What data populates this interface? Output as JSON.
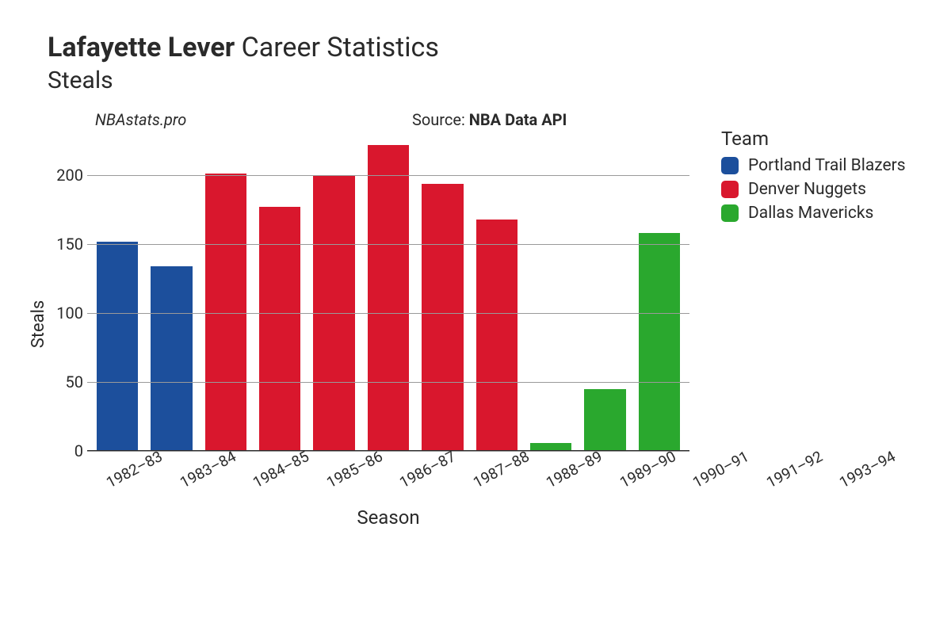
{
  "title": {
    "player": "Lafayette Lever",
    "suffix": "Career Statistics",
    "stat": "Steals"
  },
  "subhead": {
    "brand": "NBAstats.pro",
    "source_prefix": "Source: ",
    "source_name": "NBA Data API"
  },
  "chart": {
    "type": "bar",
    "ylabel": "Steals",
    "xlabel": "Season",
    "ymax": 230,
    "yticks": [
      0,
      50,
      100,
      150,
      200
    ],
    "grid_color": "#9a9a9a",
    "axis_color": "#2a2a2a",
    "background": "#ffffff",
    "categories": [
      "1982–83",
      "1983–84",
      "1984–85",
      "1985–86",
      "1986–87",
      "1987–88",
      "1988–89",
      "1989–90",
      "1990–91",
      "1991–92",
      "1993–94"
    ],
    "values": [
      152,
      134,
      201,
      177,
      200,
      222,
      194,
      168,
      6,
      45,
      158
    ],
    "bar_colors": [
      "#1c4f9c",
      "#1c4f9c",
      "#d9172d",
      "#d9172d",
      "#d9172d",
      "#d9172d",
      "#d9172d",
      "#d9172d",
      "#2aa82e",
      "#2aa82e",
      "#2aa82e"
    ],
    "bar_width_ratio": 0.78,
    "xtick_fontsize": 19,
    "ytick_fontsize": 20,
    "label_fontsize": 22
  },
  "legend": {
    "title": "Team",
    "items": [
      {
        "label": "Portland Trail Blazers",
        "color": "#1c4f9c"
      },
      {
        "label": "Denver Nuggets",
        "color": "#d9172d"
      },
      {
        "label": "Dallas Mavericks",
        "color": "#2aa82e"
      }
    ]
  }
}
